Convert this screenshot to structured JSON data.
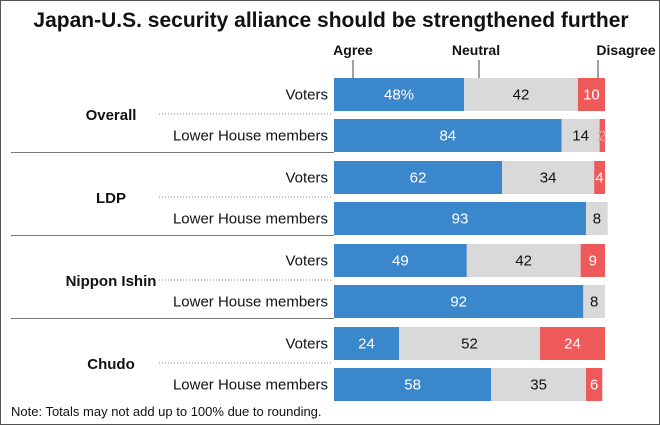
{
  "colors": {
    "agree": "#3b87cc",
    "neutral": "#d9d9d9",
    "disagree": "#ee5a5a",
    "text_dark": "#111111",
    "text_light": "#ffffff",
    "divider": "#777777"
  },
  "chart_data": {
    "type": "bar",
    "orientation": "horizontal",
    "stacked": true,
    "title": "Japan-U.S. security alliance should be strengthened further",
    "legend": [
      "Agree",
      "Neutral",
      "Disagree"
    ],
    "note": "Note: Totals may not add up to 100% due to rounding.",
    "groups": [
      {
        "name": "Overall",
        "rows": [
          {
            "label": "Voters",
            "values": [
              48,
              42,
              10
            ],
            "labels": [
              "48%",
              "42",
              "10"
            ]
          },
          {
            "label": "Lower House members",
            "values": [
              84,
              14,
              2
            ],
            "labels": [
              "84",
              "14",
              "2"
            ]
          }
        ]
      },
      {
        "name": "LDP",
        "rows": [
          {
            "label": "Voters",
            "values": [
              62,
              34,
              4
            ],
            "labels": [
              "62",
              "34",
              "4"
            ]
          },
          {
            "label": "Lower House members",
            "values": [
              93,
              8,
              0
            ],
            "labels": [
              "93",
              "8",
              ""
            ]
          }
        ]
      },
      {
        "name": "Nippon Ishin",
        "rows": [
          {
            "label": "Voters",
            "values": [
              49,
              42,
              9
            ],
            "labels": [
              "49",
              "42",
              "9"
            ]
          },
          {
            "label": "Lower House members",
            "values": [
              92,
              8,
              0
            ],
            "labels": [
              "92",
              "8",
              ""
            ]
          }
        ]
      },
      {
        "name": "Chudo",
        "rows": [
          {
            "label": "Voters",
            "values": [
              24,
              52,
              24
            ],
            "labels": [
              "24",
              "52",
              "24"
            ]
          },
          {
            "label": "Lower House members",
            "values": [
              58,
              35,
              6
            ],
            "labels": [
              "58",
              "35",
              "6"
            ]
          }
        ]
      }
    ]
  }
}
